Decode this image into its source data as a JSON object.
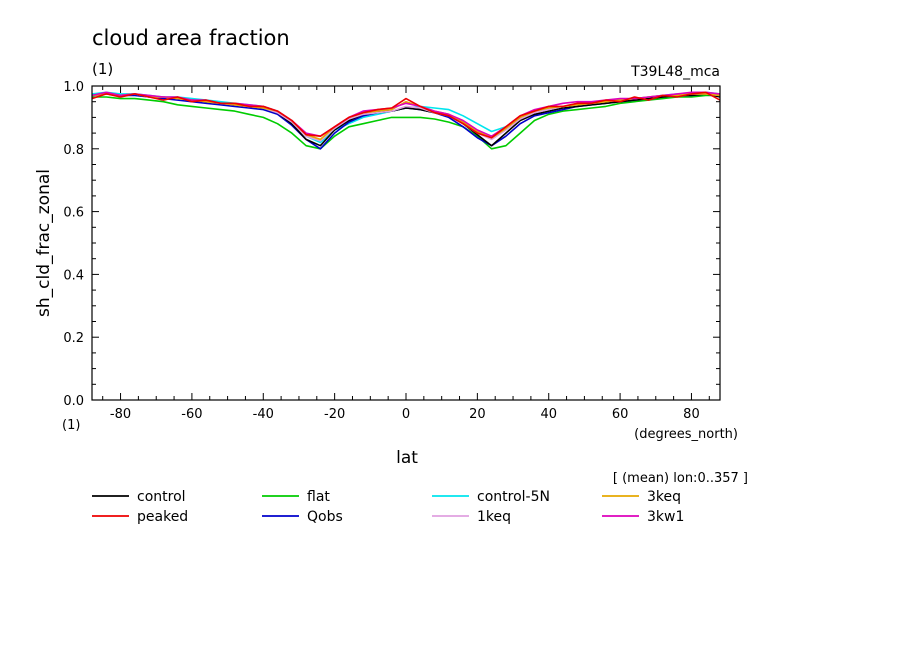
{
  "chart_data": {
    "type": "line",
    "title": "cloud area fraction",
    "subtitle": "(1)",
    "run_label": "T39L48_mca",
    "xlabel": "lat",
    "x_units": "(degrees_north)",
    "ylabel": "sh_cld_frac_zonal",
    "y_units": "(1)",
    "mean_note": "[ (mean) lon:0..357 ]",
    "xlim": [
      -88,
      88
    ],
    "ylim": [
      0,
      1
    ],
    "x_ticks": [
      -80,
      -60,
      -40,
      -20,
      0,
      20,
      40,
      60,
      80
    ],
    "x_tick_labels": [
      "-80",
      "-60",
      "-40",
      "-20",
      "0",
      "20",
      "40",
      "60",
      "80"
    ],
    "y_ticks": [
      0,
      0.2,
      0.4,
      0.6,
      0.8,
      1.0
    ],
    "y_tick_labels": [
      "0.0",
      "0.2",
      "0.4",
      "0.6",
      "0.8",
      "1.0"
    ],
    "grid": false,
    "legend_position": "bottom",
    "x": [
      -88,
      -84,
      -80,
      -76,
      -72,
      -68,
      -64,
      -60,
      -56,
      -52,
      -48,
      -44,
      -40,
      -36,
      -32,
      -28,
      -24,
      -20,
      -16,
      -12,
      -8,
      -4,
      0,
      4,
      8,
      12,
      16,
      20,
      24,
      28,
      32,
      36,
      40,
      44,
      48,
      52,
      56,
      60,
      64,
      68,
      72,
      76,
      80,
      84,
      88
    ],
    "series": [
      {
        "name": "control",
        "color": "#000000",
        "values": [
          0.97,
          0.975,
          0.97,
          0.975,
          0.965,
          0.965,
          0.96,
          0.955,
          0.95,
          0.945,
          0.94,
          0.935,
          0.93,
          0.915,
          0.88,
          0.83,
          0.81,
          0.86,
          0.89,
          0.91,
          0.915,
          0.92,
          0.93,
          0.925,
          0.915,
          0.905,
          0.88,
          0.845,
          0.81,
          0.85,
          0.89,
          0.91,
          0.92,
          0.93,
          0.935,
          0.94,
          0.945,
          0.95,
          0.955,
          0.96,
          0.965,
          0.97,
          0.97,
          0.975,
          0.965
        ]
      },
      {
        "name": "flat",
        "color": "#00cc00",
        "values": [
          0.965,
          0.965,
          0.96,
          0.96,
          0.955,
          0.95,
          0.94,
          0.935,
          0.93,
          0.925,
          0.92,
          0.91,
          0.9,
          0.88,
          0.85,
          0.81,
          0.8,
          0.84,
          0.87,
          0.88,
          0.89,
          0.9,
          0.9,
          0.9,
          0.895,
          0.885,
          0.87,
          0.84,
          0.8,
          0.81,
          0.85,
          0.89,
          0.91,
          0.92,
          0.925,
          0.93,
          0.935,
          0.945,
          0.95,
          0.955,
          0.96,
          0.965,
          0.965,
          0.97,
          0.97
        ]
      },
      {
        "name": "control-5N",
        "color": "#00e5ee",
        "values": [
          0.975,
          0.98,
          0.975,
          0.975,
          0.97,
          0.965,
          0.965,
          0.96,
          0.955,
          0.95,
          0.945,
          0.94,
          0.935,
          0.92,
          0.89,
          0.84,
          0.82,
          0.86,
          0.88,
          0.9,
          0.91,
          0.92,
          0.93,
          0.935,
          0.93,
          0.925,
          0.905,
          0.88,
          0.855,
          0.87,
          0.9,
          0.92,
          0.93,
          0.935,
          0.94,
          0.945,
          0.95,
          0.955,
          0.96,
          0.965,
          0.97,
          0.975,
          0.975,
          0.98,
          0.975
        ]
      },
      {
        "name": "3keq",
        "color": "#e6a800",
        "values": [
          0.97,
          0.975,
          0.97,
          0.975,
          0.965,
          0.965,
          0.96,
          0.955,
          0.95,
          0.945,
          0.94,
          0.935,
          0.93,
          0.92,
          0.89,
          0.845,
          0.83,
          0.87,
          0.9,
          0.915,
          0.92,
          0.925,
          0.95,
          0.935,
          0.92,
          0.91,
          0.885,
          0.855,
          0.835,
          0.865,
          0.9,
          0.92,
          0.93,
          0.935,
          0.94,
          0.945,
          0.95,
          0.955,
          0.96,
          0.965,
          0.97,
          0.97,
          0.975,
          0.975,
          0.97
        ]
      },
      {
        "name": "peaked",
        "color": "#ee0000",
        "values": [
          0.96,
          0.975,
          0.965,
          0.975,
          0.965,
          0.955,
          0.965,
          0.95,
          0.955,
          0.945,
          0.945,
          0.935,
          0.935,
          0.92,
          0.89,
          0.845,
          0.84,
          0.87,
          0.9,
          0.915,
          0.925,
          0.93,
          0.96,
          0.935,
          0.915,
          0.905,
          0.88,
          0.85,
          0.835,
          0.87,
          0.905,
          0.92,
          0.935,
          0.935,
          0.945,
          0.945,
          0.955,
          0.95,
          0.965,
          0.955,
          0.97,
          0.965,
          0.975,
          0.98,
          0.955
        ]
      },
      {
        "name": "Qobs",
        "color": "#0000cc",
        "values": [
          0.97,
          0.975,
          0.97,
          0.97,
          0.965,
          0.96,
          0.955,
          0.95,
          0.945,
          0.94,
          0.935,
          0.93,
          0.925,
          0.91,
          0.875,
          0.83,
          0.8,
          0.85,
          0.885,
          0.905,
          0.915,
          0.92,
          0.93,
          0.925,
          0.915,
          0.9,
          0.87,
          0.835,
          0.81,
          0.84,
          0.88,
          0.905,
          0.915,
          0.925,
          0.935,
          0.94,
          0.945,
          0.95,
          0.955,
          0.96,
          0.965,
          0.97,
          0.97,
          0.975,
          0.97
        ]
      },
      {
        "name": "1keq",
        "color": "#e0a0e0",
        "values": [
          0.97,
          0.975,
          0.97,
          0.975,
          0.965,
          0.965,
          0.96,
          0.955,
          0.95,
          0.945,
          0.94,
          0.935,
          0.93,
          0.915,
          0.885,
          0.84,
          0.825,
          0.865,
          0.895,
          0.91,
          0.915,
          0.92,
          0.935,
          0.93,
          0.915,
          0.905,
          0.88,
          0.85,
          0.83,
          0.86,
          0.895,
          0.915,
          0.925,
          0.935,
          0.94,
          0.945,
          0.95,
          0.955,
          0.96,
          0.965,
          0.97,
          0.97,
          0.975,
          0.975,
          0.97
        ]
      },
      {
        "name": "3kw1",
        "color": "#dd00bb",
        "values": [
          0.97,
          0.98,
          0.97,
          0.975,
          0.97,
          0.965,
          0.965,
          0.955,
          0.955,
          0.945,
          0.945,
          0.94,
          0.935,
          0.92,
          0.89,
          0.85,
          0.84,
          0.87,
          0.9,
          0.92,
          0.925,
          0.93,
          0.945,
          0.935,
          0.92,
          0.91,
          0.89,
          0.86,
          0.84,
          0.87,
          0.905,
          0.925,
          0.935,
          0.945,
          0.95,
          0.95,
          0.955,
          0.96,
          0.96,
          0.965,
          0.97,
          0.975,
          0.98,
          0.98,
          0.975
        ]
      }
    ],
    "legend_order": [
      "control",
      "flat",
      "control-5N",
      "3keq",
      "peaked",
      "Qobs",
      "1keq",
      "3kw1"
    ]
  }
}
